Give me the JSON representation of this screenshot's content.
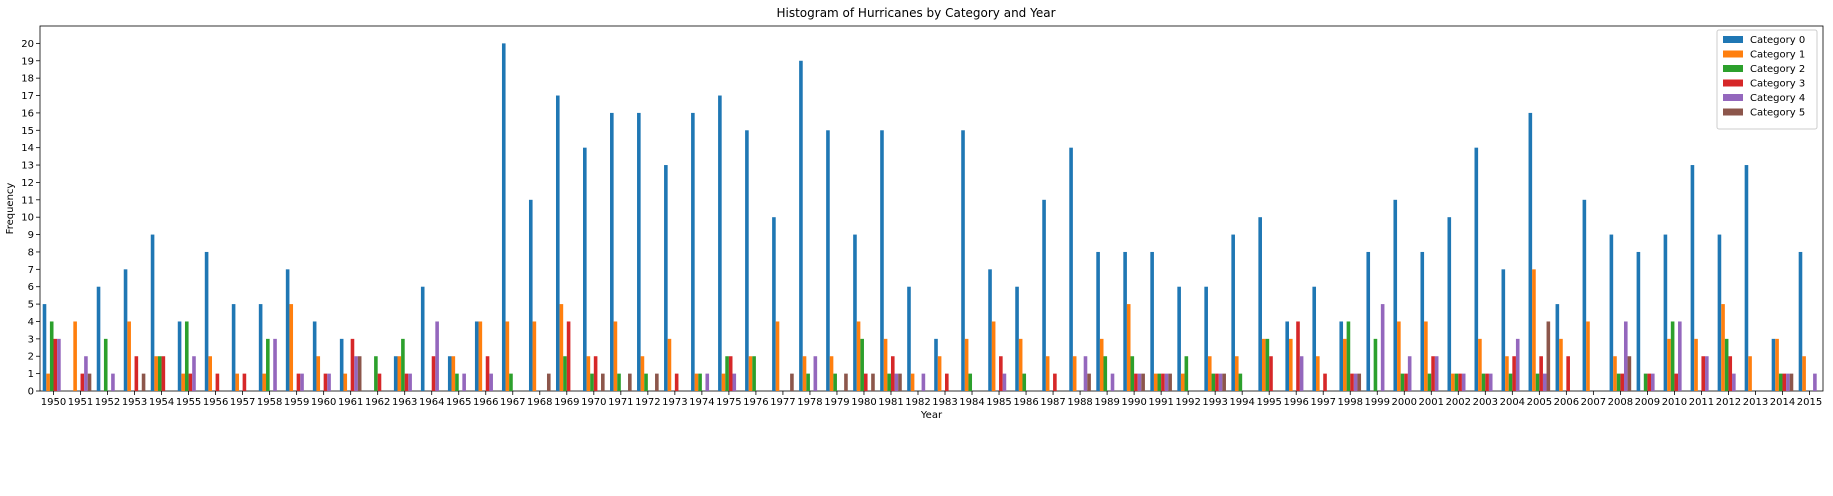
{
  "chart_data": {
    "type": "bar",
    "title": "Histogram of Hurricanes by Category and Year",
    "xlabel": "Year",
    "ylabel": "Frequency",
    "ylim": [
      0,
      21
    ],
    "yticks": [
      0,
      1,
      2,
      3,
      4,
      5,
      6,
      7,
      8,
      9,
      10,
      11,
      12,
      13,
      14,
      15,
      16,
      17,
      18,
      19,
      20
    ],
    "legend_position": "top-right",
    "grid": false,
    "categories": [
      "1950",
      "1951",
      "1952",
      "1953",
      "1954",
      "1955",
      "1956",
      "1957",
      "1958",
      "1959",
      "1960",
      "1961",
      "1962",
      "1963",
      "1964",
      "1965",
      "1966",
      "1967",
      "1968",
      "1969",
      "1970",
      "1971",
      "1972",
      "1973",
      "1974",
      "1975",
      "1976",
      "1977",
      "1978",
      "1979",
      "1980",
      "1981",
      "1982",
      "1983",
      "1984",
      "1985",
      "1986",
      "1987",
      "1988",
      "1989",
      "1990",
      "1991",
      "1992",
      "1993",
      "1994",
      "1995",
      "1996",
      "1997",
      "1998",
      "1999",
      "2000",
      "2001",
      "2002",
      "2003",
      "2004",
      "2005",
      "2006",
      "2007",
      "2008",
      "2009",
      "2010",
      "2011",
      "2012",
      "2013",
      "2014",
      "2015"
    ],
    "series": [
      {
        "name": "Category 0",
        "color": "#1f77b4",
        "values": [
          5,
          0,
          6,
          7,
          9,
          4,
          8,
          5,
          5,
          7,
          4,
          3,
          0,
          2,
          6,
          2,
          4,
          20,
          11,
          17,
          14,
          16,
          16,
          13,
          16,
          17,
          15,
          10,
          19,
          15,
          9,
          15,
          6,
          3,
          15,
          7,
          6,
          11,
          14,
          8,
          8,
          8,
          6,
          6,
          9,
          10,
          4,
          6,
          4,
          8,
          11,
          8,
          10,
          14,
          7,
          16,
          5,
          11,
          9,
          8,
          9,
          13,
          9,
          13,
          3,
          8
        ]
      },
      {
        "name": "Category 1",
        "color": "#ff7f0e",
        "values": [
          1,
          4,
          0,
          4,
          2,
          1,
          2,
          1,
          1,
          5,
          2,
          1,
          0,
          2,
          0,
          2,
          4,
          4,
          4,
          5,
          2,
          4,
          2,
          3,
          1,
          1,
          2,
          4,
          2,
          2,
          4,
          3,
          1,
          2,
          3,
          4,
          3,
          2,
          2,
          3,
          5,
          1,
          1,
          2,
          2,
          3,
          3,
          2,
          3,
          0,
          4,
          4,
          1,
          3,
          2,
          7,
          3,
          4,
          2,
          0,
          3,
          3,
          5,
          2,
          3,
          2
        ]
      },
      {
        "name": "Category 2",
        "color": "#2ca02c",
        "values": [
          4,
          0,
          3,
          0,
          2,
          4,
          0,
          0,
          3,
          0,
          0,
          0,
          2,
          3,
          0,
          1,
          0,
          1,
          0,
          2,
          1,
          1,
          1,
          0,
          1,
          2,
          2,
          0,
          1,
          1,
          3,
          1,
          0,
          0,
          1,
          0,
          1,
          0,
          0,
          2,
          2,
          1,
          2,
          1,
          1,
          3,
          0,
          0,
          4,
          3,
          1,
          1,
          1,
          1,
          1,
          1,
          0,
          0,
          1,
          1,
          4,
          0,
          3,
          0,
          1,
          0
        ]
      },
      {
        "name": "Category 3",
        "color": "#d62728",
        "values": [
          3,
          1,
          0,
          2,
          2,
          1,
          1,
          1,
          0,
          1,
          1,
          3,
          1,
          1,
          2,
          0,
          2,
          0,
          0,
          4,
          2,
          0,
          0,
          1,
          0,
          2,
          0,
          0,
          0,
          0,
          1,
          2,
          0,
          1,
          0,
          2,
          0,
          1,
          0,
          0,
          1,
          1,
          0,
          1,
          0,
          2,
          4,
          1,
          1,
          0,
          1,
          2,
          1,
          1,
          2,
          2,
          2,
          0,
          1,
          1,
          1,
          2,
          2,
          0,
          1,
          0
        ]
      },
      {
        "name": "Category 4",
        "color": "#9467bd",
        "values": [
          3,
          2,
          1,
          0,
          0,
          2,
          0,
          0,
          3,
          1,
          1,
          2,
          0,
          1,
          4,
          1,
          1,
          0,
          0,
          0,
          0,
          0,
          0,
          0,
          1,
          1,
          0,
          0,
          2,
          0,
          0,
          1,
          1,
          0,
          0,
          1,
          0,
          0,
          2,
          1,
          1,
          1,
          0,
          1,
          0,
          0,
          2,
          0,
          1,
          5,
          2,
          2,
          1,
          1,
          3,
          1,
          0,
          0,
          4,
          1,
          4,
          2,
          1,
          0,
          1,
          1
        ]
      },
      {
        "name": "Category 5",
        "color": "#8c564b",
        "values": [
          0,
          1,
          0,
          1,
          0,
          0,
          0,
          0,
          0,
          0,
          0,
          2,
          0,
          0,
          0,
          0,
          0,
          0,
          1,
          0,
          1,
          1,
          1,
          0,
          0,
          0,
          0,
          1,
          0,
          1,
          1,
          1,
          0,
          0,
          0,
          0,
          0,
          0,
          1,
          0,
          1,
          1,
          0,
          1,
          0,
          0,
          0,
          0,
          1,
          0,
          0,
          0,
          0,
          0,
          0,
          4,
          0,
          0,
          2,
          0,
          0,
          0,
          0,
          0,
          1,
          0
        ]
      }
    ]
  }
}
